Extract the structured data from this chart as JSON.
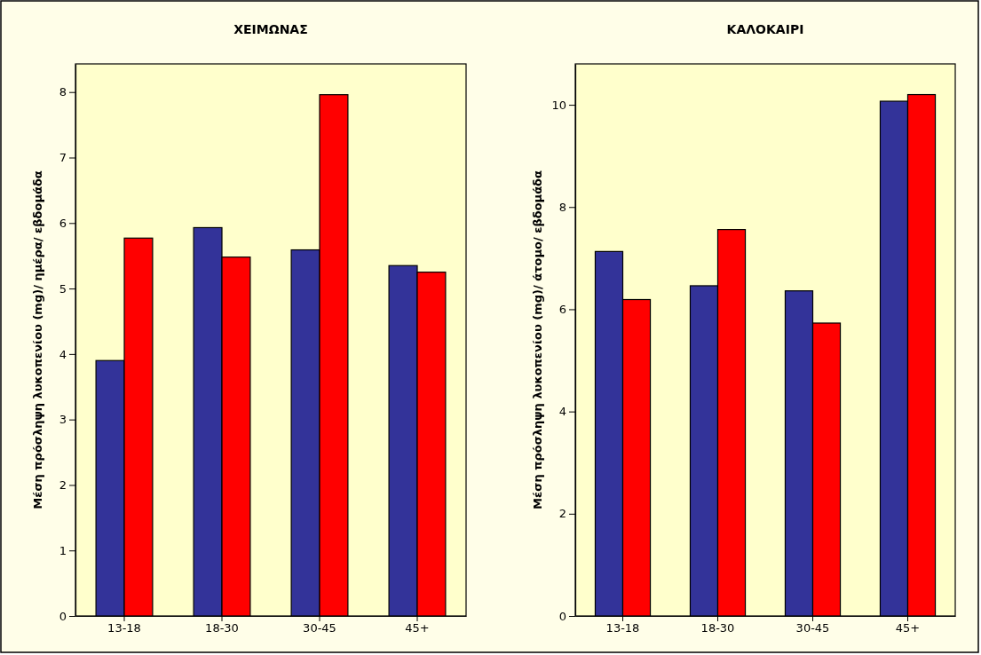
{
  "chart_data": [
    {
      "type": "bar",
      "title": "ΧΕΙΜΩΝΑΣ",
      "ylabel": "Μέση πρόσληψη λυκοπενίου (mg)/ ημέρα/ εβδομάδα",
      "categories": [
        "13-18",
        "18-30",
        "30-45",
        "45+"
      ],
      "series": [
        {
          "color": "#333399",
          "values": [
            3.9,
            5.93,
            5.59,
            5.35
          ]
        },
        {
          "color": "#ff0000",
          "values": [
            5.77,
            5.48,
            7.96,
            5.25
          ]
        }
      ],
      "ylim": [
        0,
        8.43
      ],
      "yticks": [
        0,
        1,
        2,
        3,
        4,
        5,
        6,
        7,
        8
      ],
      "grid": false
    },
    {
      "type": "bar",
      "title": "ΚΑΛΟΚΑΙΡΙ",
      "ylabel": "Μέση πρόσληψη λυκοπενίου (mg)/ άτομο/ εβδομάδα",
      "categories": [
        "13-18",
        "18-30",
        "30-45",
        "45+"
      ],
      "series": [
        {
          "color": "#333399",
          "values": [
            7.13,
            6.46,
            6.36,
            10.07
          ]
        },
        {
          "color": "#ff0000",
          "values": [
            6.19,
            7.56,
            5.73,
            10.2
          ]
        }
      ],
      "ylim": [
        0,
        10.8
      ],
      "yticks": [
        0,
        2,
        4,
        6,
        8,
        10
      ],
      "grid": false
    }
  ]
}
